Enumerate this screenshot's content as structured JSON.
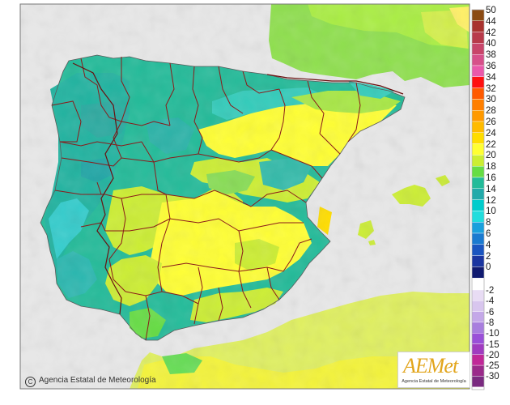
{
  "map": {
    "copyright": "Agencia Estatal de Meteorología",
    "logo_text": "AEMet",
    "logo_subtitle": "Agencia Estatal de Meteorología"
  },
  "legend": {
    "positive": [
      {
        "label": "50",
        "color": "#8b4a12"
      },
      {
        "label": "44",
        "color": "#a8322e"
      },
      {
        "label": "42",
        "color": "#b83a4a"
      },
      {
        "label": "40",
        "color": "#c8456a"
      },
      {
        "label": "38",
        "color": "#d7508a"
      },
      {
        "label": "36",
        "color": "#ea58aa"
      },
      {
        "label": "34",
        "color": "#ff1010"
      },
      {
        "label": "32",
        "color": "#ff5a00"
      },
      {
        "label": "30",
        "color": "#ff7f00"
      },
      {
        "label": "28",
        "color": "#ff9900"
      },
      {
        "label": "26",
        "color": "#ffbb00"
      },
      {
        "label": "24",
        "color": "#ffdd00"
      },
      {
        "label": "22",
        "color": "#ffff33"
      },
      {
        "label": "20",
        "color": "#ccee33"
      },
      {
        "label": "18",
        "color": "#66dd44"
      },
      {
        "label": "16",
        "color": "#22bb99"
      },
      {
        "label": "14",
        "color": "#22aaaa"
      },
      {
        "label": "12",
        "color": "#00cccc"
      },
      {
        "label": "10",
        "color": "#22dddd"
      },
      {
        "label": "8",
        "color": "#1aa0dd"
      },
      {
        "label": "6",
        "color": "#1a7ad0"
      },
      {
        "label": "4",
        "color": "#1a55c0"
      },
      {
        "label": "2",
        "color": "#1a35a0"
      },
      {
        "label": "0",
        "color": "#101a70"
      }
    ],
    "negative": [
      {
        "label": "-2",
        "color": "#e8dcf4"
      },
      {
        "label": "-4",
        "color": "#d8c6ee"
      },
      {
        "label": "-6",
        "color": "#c4a8e8"
      },
      {
        "label": "-8",
        "color": "#a87ede"
      },
      {
        "label": "-10",
        "color": "#9a50d8"
      },
      {
        "label": "-15",
        "color": "#a03cc0"
      },
      {
        "label": "-20",
        "color": "#c02898"
      },
      {
        "label": "-25",
        "color": "#9a2a8a"
      },
      {
        "label": "-30",
        "color": "#7a2a80"
      }
    ]
  }
}
